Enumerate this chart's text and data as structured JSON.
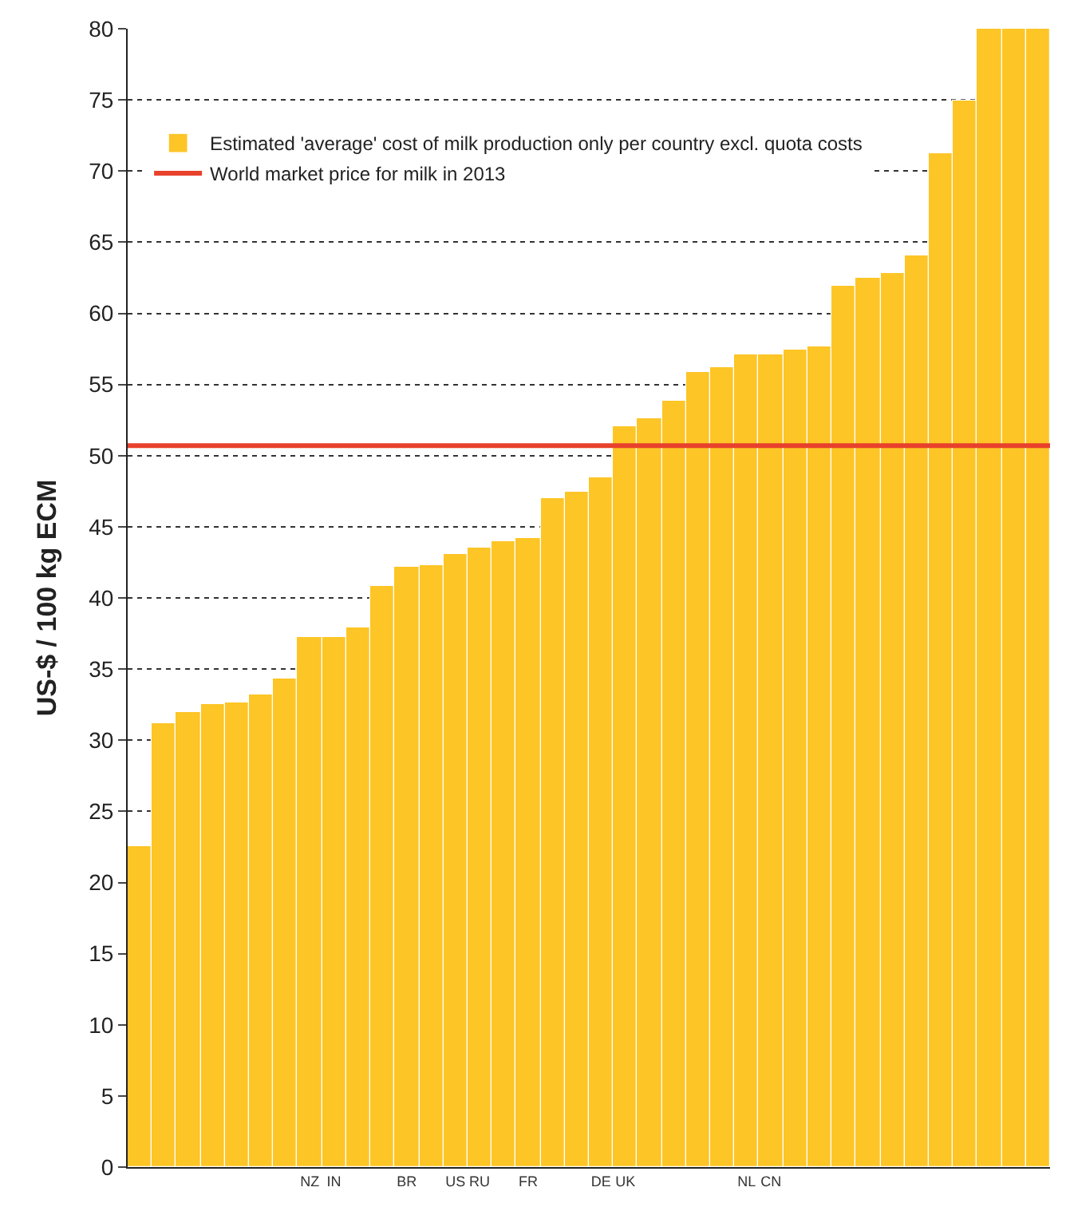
{
  "chart_data": {
    "type": "bar",
    "ylabel": "US-$ / 100 kg ECM",
    "categories": [
      null,
      null,
      null,
      null,
      null,
      null,
      null,
      "NZ",
      "IN",
      null,
      null,
      "BR",
      null,
      "US",
      "RU",
      null,
      "FR",
      null,
      null,
      "DE",
      "UK",
      null,
      null,
      null,
      null,
      "NL",
      "CN",
      null,
      null,
      null,
      null,
      null,
      null,
      null,
      null,
      null,
      null,
      null
    ],
    "series": [
      {
        "name": "Estimated 'average' cost of milk production only per country excl. quota costs",
        "color": "#fdc526",
        "values": [
          22.5,
          31.2,
          32.0,
          32.5,
          32.6,
          33.2,
          34.3,
          37.3,
          37.3,
          37.9,
          40.8,
          42.2,
          42.3,
          43.1,
          43.5,
          44.0,
          44.2,
          47.0,
          47.5,
          48.5,
          52.1,
          52.6,
          53.9,
          55.9,
          56.2,
          57.1,
          57.1,
          57.5,
          57.7,
          61.9,
          62.5,
          62.8,
          64.1,
          71.2,
          74.9,
          80,
          80,
          80
        ]
      }
    ],
    "ref_lines": [
      {
        "axis": "y",
        "value": 50.7,
        "label": "World market price for milk in 2013",
        "color": "#e8412c",
        "line_style": "solid"
      }
    ],
    "ylim": [
      0,
      80
    ],
    "yticks": [
      0,
      5,
      10,
      15,
      20,
      25,
      30,
      35,
      40,
      45,
      50,
      55,
      60,
      65,
      70,
      75,
      80
    ],
    "grid": "y",
    "legend": "top left"
  }
}
